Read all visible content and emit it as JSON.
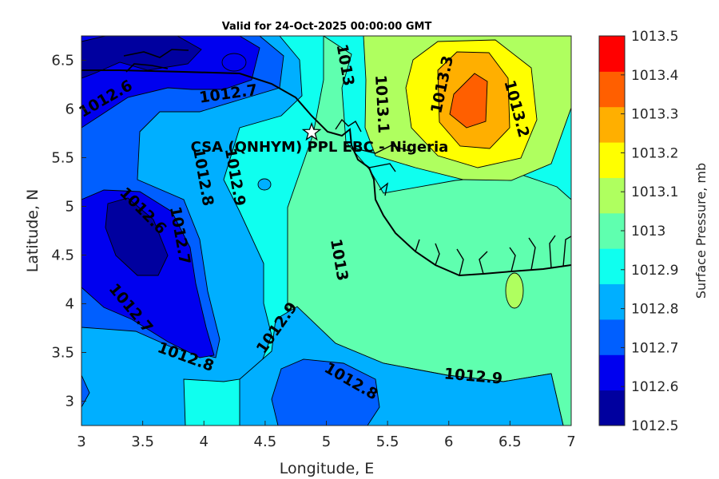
{
  "chart_data": {
    "type": "contour",
    "title": "Valid for 24-Oct-2025 00:00:00 GMT",
    "xlabel": "Longitude, E",
    "ylabel": "Latitude, N",
    "xlim": [
      3,
      7
    ],
    "ylim": [
      2.75,
      6.75
    ],
    "xticks": [
      3,
      3.5,
      4,
      4.5,
      5,
      5.5,
      6,
      6.5,
      7
    ],
    "xtick_labels": [
      "3",
      "3.5",
      "4",
      "4.5",
      "5",
      "5.5",
      "6",
      "6.5",
      "7"
    ],
    "yticks": [
      3,
      3.5,
      4,
      4.5,
      5,
      5.5,
      6,
      6.5
    ],
    "ytick_labels": [
      "3",
      "3.5",
      "4",
      "4.5",
      "5",
      "5.5",
      "6",
      "6.5"
    ],
    "colorbar": {
      "label": "Surface Pressure, mb",
      "range": [
        1012.5,
        1013.5
      ],
      "ticks": [
        "1012.5",
        "1012.6",
        "1012.7",
        "1012.8",
        "1012.9",
        "1013",
        "1013.1",
        "1013.2",
        "1013.3",
        "1013.4",
        "1013.5"
      ],
      "colors": [
        "#00009f",
        "#0000ef",
        "#005fff",
        "#00afff",
        "#0fffef",
        "#5fffaf",
        "#afff5f",
        "#ffff00",
        "#ffaf00",
        "#ff5f00",
        "#ff0000"
      ]
    },
    "contour_labels": [
      {
        "text": "1012.6",
        "lon": 3.2,
        "lat": 6.1
      },
      {
        "text": "1012.7",
        "lon": 4.2,
        "lat": 6.15
      },
      {
        "text": "1013",
        "lon": 5.15,
        "lat": 6.45
      },
      {
        "text": "1013.1",
        "lon": 5.45,
        "lat": 6.05
      },
      {
        "text": "1013.3",
        "lon": 5.95,
        "lat": 6.25
      },
      {
        "text": "1013.2",
        "lon": 6.55,
        "lat": 6.0
      },
      {
        "text": "1012.8",
        "lon": 3.99,
        "lat": 5.3
      },
      {
        "text": "1012.9",
        "lon": 4.25,
        "lat": 5.3
      },
      {
        "text": "1012.6",
        "lon": 3.5,
        "lat": 4.95
      },
      {
        "text": "1012.7",
        "lon": 3.8,
        "lat": 4.7
      },
      {
        "text": "1013",
        "lon": 5.1,
        "lat": 4.45
      },
      {
        "text": "1012.7",
        "lon": 3.4,
        "lat": 3.95
      },
      {
        "text": "1012.9",
        "lon": 4.6,
        "lat": 3.75
      },
      {
        "text": "1012.8",
        "lon": 3.85,
        "lat": 3.45
      },
      {
        "text": "1012.8",
        "lon": 5.2,
        "lat": 3.2
      },
      {
        "text": "1012.9",
        "lon": 6.2,
        "lat": 3.25
      }
    ],
    "annotation": {
      "text": "CSA (QNHYM) PPL EBC - Nigeria",
      "marker": "star",
      "lon": 4.88,
      "lat": 5.76
    }
  }
}
